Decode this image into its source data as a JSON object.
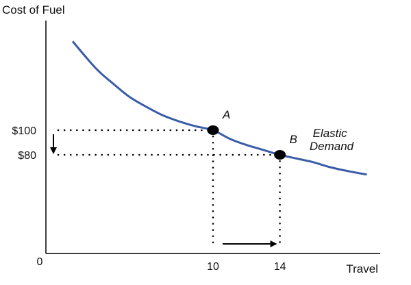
{
  "chart_data": {
    "type": "line",
    "title": "",
    "ylabel": "Cost of Fuel",
    "xlabel": "Travel",
    "origin_label": "0",
    "xlim": [
      0,
      20
    ],
    "ylim": [
      0,
      200
    ],
    "x_ticks": [
      {
        "value": 10,
        "label": "10"
      },
      {
        "value": 14,
        "label": "14"
      }
    ],
    "y_ticks": [
      {
        "value": 100,
        "label": "$100"
      },
      {
        "value": 80,
        "label": "$80"
      }
    ],
    "series": [
      {
        "name": "Elastic Demand",
        "label_lines": [
          "Elastic",
          "Demand"
        ],
        "color": "#3a5ba8",
        "x": [
          1.6,
          3,
          4,
          5,
          6,
          7,
          8,
          9,
          10,
          11,
          12,
          13,
          14,
          15,
          16,
          17,
          18,
          19.2
        ],
        "y": [
          172,
          150,
          138,
          127,
          119,
          112,
          107,
          103,
          100,
          93,
          88,
          84,
          80,
          77,
          74,
          70,
          67,
          64
        ]
      }
    ],
    "points": [
      {
        "label": "A",
        "x": 10,
        "y": 100
      },
      {
        "label": "B",
        "x": 14,
        "y": 80
      }
    ],
    "annotations": {
      "price_change": "down arrow from $100 to $80",
      "quantity_change": "right arrow from 10 to 14"
    }
  }
}
